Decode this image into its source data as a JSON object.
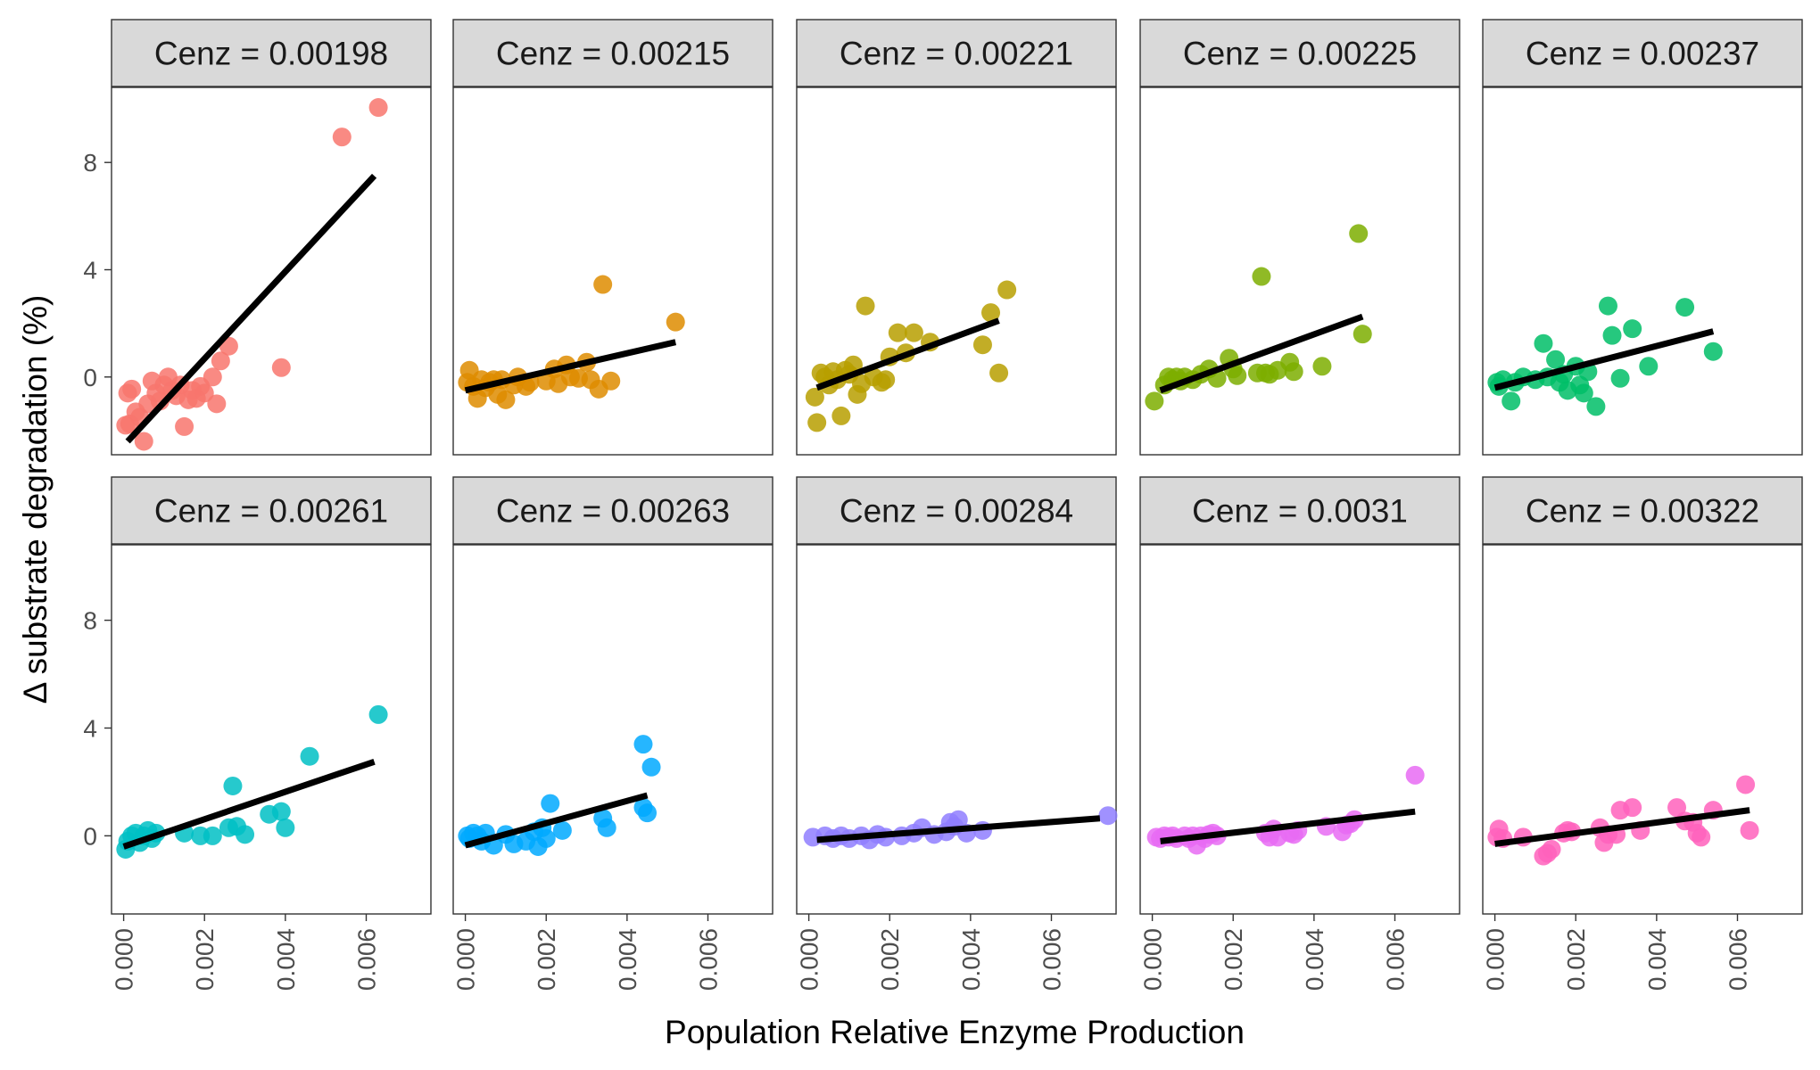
{
  "chart_data": {
    "type": "scatter",
    "xlabel": "Population Relative Enzyme Production",
    "ylabel": "Δ substrate degradation (%)",
    "facet_label_prefix": "Cenz = ",
    "xlim": [
      -0.0003,
      0.0076
    ],
    "ylim": [
      -2.9,
      10.8
    ],
    "x_ticks": [
      0.0,
      0.002,
      0.004,
      0.006
    ],
    "x_tick_labels": [
      "0.000",
      "0.002",
      "0.004",
      "0.006"
    ],
    "y_ticks": [
      0,
      4,
      8
    ],
    "y_tick_labels": [
      "0",
      "4",
      "8"
    ],
    "panels": [
      {
        "label": "0.00198",
        "color": "#F8766D",
        "fit": [
          [
            0.0001,
            -2.4
          ],
          [
            0.0062,
            7.5
          ]
        ],
        "points": [
          [
            5e-05,
            -1.8
          ],
          [
            0.0001,
            -0.6
          ],
          [
            0.00015,
            -1.75
          ],
          [
            0.0002,
            -0.45
          ],
          [
            0.0003,
            -1.3
          ],
          [
            0.0004,
            -1.5
          ],
          [
            0.0005,
            -2.4
          ],
          [
            0.0006,
            -1.0
          ],
          [
            0.0007,
            -0.15
          ],
          [
            0.0008,
            -0.6
          ],
          [
            0.0009,
            -0.9
          ],
          [
            0.001,
            -0.3
          ],
          [
            0.0011,
            0.0
          ],
          [
            0.0012,
            -0.5
          ],
          [
            0.0013,
            -0.7
          ],
          [
            0.0014,
            -0.3
          ],
          [
            0.0015,
            -1.85
          ],
          [
            0.0016,
            -0.85
          ],
          [
            0.0017,
            -0.5
          ],
          [
            0.0018,
            -0.8
          ],
          [
            0.0019,
            -0.35
          ],
          [
            0.002,
            -0.6
          ],
          [
            0.0022,
            0.0
          ],
          [
            0.0023,
            -1.0
          ],
          [
            0.0024,
            0.6
          ],
          [
            0.0026,
            1.15
          ],
          [
            0.0039,
            0.35
          ],
          [
            0.0054,
            8.95
          ],
          [
            0.0063,
            10.05
          ]
        ]
      },
      {
        "label": "0.00215",
        "color": "#DE8C00",
        "fit": [
          [
            0.0,
            -0.5
          ],
          [
            0.0052,
            1.3
          ]
        ],
        "points": [
          [
            5e-05,
            -0.2
          ],
          [
            0.0001,
            0.25
          ],
          [
            0.0002,
            -0.35
          ],
          [
            0.0003,
            -0.8
          ],
          [
            0.0004,
            -0.1
          ],
          [
            0.0005,
            -0.4
          ],
          [
            0.0006,
            -0.2
          ],
          [
            0.0007,
            -0.1
          ],
          [
            0.0008,
            -0.65
          ],
          [
            0.0009,
            -0.1
          ],
          [
            0.001,
            -0.85
          ],
          [
            0.0012,
            -0.3
          ],
          [
            0.0013,
            0.0
          ],
          [
            0.0015,
            -0.35
          ],
          [
            0.0016,
            -0.2
          ],
          [
            0.002,
            -0.15
          ],
          [
            0.0022,
            0.3
          ],
          [
            0.0023,
            -0.25
          ],
          [
            0.0025,
            0.45
          ],
          [
            0.0026,
            0.0
          ],
          [
            0.0028,
            -0.05
          ],
          [
            0.003,
            0.55
          ],
          [
            0.0031,
            -0.1
          ],
          [
            0.0033,
            -0.45
          ],
          [
            0.0034,
            3.45
          ],
          [
            0.0036,
            -0.15
          ],
          [
            0.0052,
            2.05
          ]
        ]
      },
      {
        "label": "0.00221",
        "color": "#B79F00",
        "fit": [
          [
            0.0002,
            -0.4
          ],
          [
            0.0047,
            2.1
          ]
        ],
        "points": [
          [
            0.00015,
            -0.75
          ],
          [
            0.0002,
            -1.7
          ],
          [
            0.0003,
            0.15
          ],
          [
            0.0004,
            0.0
          ],
          [
            0.0005,
            -0.3
          ],
          [
            0.0006,
            0.2
          ],
          [
            0.0007,
            -0.1
          ],
          [
            0.0008,
            -1.45
          ],
          [
            0.0009,
            0.25
          ],
          [
            0.001,
            0.1
          ],
          [
            0.0011,
            0.45
          ],
          [
            0.0012,
            -0.65
          ],
          [
            0.0013,
            -0.25
          ],
          [
            0.0014,
            2.65
          ],
          [
            0.0016,
            0.0
          ],
          [
            0.0018,
            -0.2
          ],
          [
            0.0019,
            -0.1
          ],
          [
            0.002,
            0.75
          ],
          [
            0.0022,
            1.65
          ],
          [
            0.0024,
            0.9
          ],
          [
            0.0026,
            1.65
          ],
          [
            0.003,
            1.3
          ],
          [
            0.0043,
            1.2
          ],
          [
            0.0045,
            2.4
          ],
          [
            0.0047,
            0.15
          ],
          [
            0.0049,
            3.25
          ]
        ]
      },
      {
        "label": "0.00225",
        "color": "#7CAE00",
        "fit": [
          [
            0.0002,
            -0.5
          ],
          [
            0.0052,
            2.25
          ]
        ],
        "points": [
          [
            5e-05,
            -0.9
          ],
          [
            0.0003,
            -0.3
          ],
          [
            0.0004,
            0.0
          ],
          [
            0.0005,
            -0.1
          ],
          [
            0.0006,
            0.0
          ],
          [
            0.0007,
            -0.15
          ],
          [
            0.0008,
            0.0
          ],
          [
            0.001,
            -0.1
          ],
          [
            0.0012,
            0.1
          ],
          [
            0.0014,
            0.3
          ],
          [
            0.0016,
            -0.05
          ],
          [
            0.0019,
            0.7
          ],
          [
            0.002,
            0.3
          ],
          [
            0.0021,
            0.05
          ],
          [
            0.0026,
            0.15
          ],
          [
            0.0027,
            3.75
          ],
          [
            0.0028,
            0.15
          ],
          [
            0.0029,
            0.1
          ],
          [
            0.0031,
            0.25
          ],
          [
            0.0034,
            0.55
          ],
          [
            0.0035,
            0.2
          ],
          [
            0.0042,
            0.4
          ],
          [
            0.0051,
            5.35
          ],
          [
            0.0052,
            1.6
          ]
        ]
      },
      {
        "label": "0.00237",
        "color": "#00BE67",
        "fit": [
          [
            0.0,
            -0.4
          ],
          [
            0.0054,
            1.7
          ]
        ],
        "points": [
          [
            5e-05,
            -0.2
          ],
          [
            0.0001,
            -0.35
          ],
          [
            0.0002,
            -0.1
          ],
          [
            0.0004,
            -0.9
          ],
          [
            0.0005,
            -0.2
          ],
          [
            0.0007,
            0.0
          ],
          [
            0.001,
            -0.1
          ],
          [
            0.0012,
            1.25
          ],
          [
            0.0013,
            0.0
          ],
          [
            0.0015,
            0.65
          ],
          [
            0.0016,
            -0.2
          ],
          [
            0.0017,
            0.1
          ],
          [
            0.0018,
            -0.5
          ],
          [
            0.002,
            0.4
          ],
          [
            0.0021,
            -0.3
          ],
          [
            0.0022,
            -0.6
          ],
          [
            0.0023,
            0.2
          ],
          [
            0.0025,
            -1.1
          ],
          [
            0.0028,
            2.65
          ],
          [
            0.0029,
            1.55
          ],
          [
            0.0031,
            -0.05
          ],
          [
            0.0034,
            1.8
          ],
          [
            0.0038,
            0.4
          ],
          [
            0.0047,
            2.6
          ],
          [
            0.0054,
            0.95
          ]
        ]
      },
      {
        "label": "0.00261",
        "color": "#00BFC4",
        "fit": [
          [
            0.0,
            -0.4
          ],
          [
            0.0062,
            2.75
          ]
        ],
        "points": [
          [
            5e-05,
            -0.5
          ],
          [
            0.0001,
            -0.2
          ],
          [
            0.0002,
            0.0
          ],
          [
            0.0003,
            0.1
          ],
          [
            0.0004,
            -0.25
          ],
          [
            0.0005,
            0.0
          ],
          [
            0.0006,
            0.2
          ],
          [
            0.0007,
            -0.1
          ],
          [
            0.0008,
            0.1
          ],
          [
            0.0015,
            0.1
          ],
          [
            0.0019,
            0.0
          ],
          [
            0.0022,
            0.0
          ],
          [
            0.0026,
            0.3
          ],
          [
            0.0027,
            1.85
          ],
          [
            0.0028,
            0.35
          ],
          [
            0.003,
            0.05
          ],
          [
            0.0036,
            0.8
          ],
          [
            0.0039,
            0.9
          ],
          [
            0.004,
            0.3
          ],
          [
            0.0046,
            2.95
          ],
          [
            0.0063,
            4.5
          ]
        ]
      },
      {
        "label": "0.00263",
        "color": "#00A9FF",
        "fit": [
          [
            0.0,
            -0.35
          ],
          [
            0.0045,
            1.5
          ]
        ],
        "points": [
          [
            5e-05,
            0.0
          ],
          [
            0.0001,
            -0.1
          ],
          [
            0.0002,
            0.1
          ],
          [
            0.0003,
            0.0
          ],
          [
            0.0004,
            -0.2
          ],
          [
            0.0005,
            0.1
          ],
          [
            0.0007,
            -0.35
          ],
          [
            0.001,
            0.05
          ],
          [
            0.0012,
            -0.3
          ],
          [
            0.0015,
            -0.2
          ],
          [
            0.0017,
            0.15
          ],
          [
            0.0018,
            -0.4
          ],
          [
            0.0019,
            0.3
          ],
          [
            0.002,
            -0.1
          ],
          [
            0.0021,
            1.2
          ],
          [
            0.0024,
            0.2
          ],
          [
            0.0034,
            0.65
          ],
          [
            0.0035,
            0.3
          ],
          [
            0.0044,
            1.05
          ],
          [
            0.0045,
            0.85
          ],
          [
            0.0044,
            3.4
          ],
          [
            0.0046,
            2.55
          ]
        ]
      },
      {
        "label": "0.00284",
        "color": "#8F7EFF",
        "fit": [
          [
            0.0002,
            -0.15
          ],
          [
            0.0072,
            0.65
          ]
        ],
        "points": [
          [
            0.0001,
            -0.05
          ],
          [
            0.0004,
            0.0
          ],
          [
            0.0006,
            -0.1
          ],
          [
            0.0008,
            0.0
          ],
          [
            0.001,
            -0.1
          ],
          [
            0.0013,
            0.0
          ],
          [
            0.0015,
            -0.15
          ],
          [
            0.0017,
            0.05
          ],
          [
            0.0019,
            -0.05
          ],
          [
            0.0023,
            0.0
          ],
          [
            0.0026,
            0.1
          ],
          [
            0.0028,
            0.3
          ],
          [
            0.0031,
            0.05
          ],
          [
            0.0034,
            0.15
          ],
          [
            0.0035,
            0.5
          ],
          [
            0.0036,
            0.35
          ],
          [
            0.0037,
            0.6
          ],
          [
            0.0039,
            0.1
          ],
          [
            0.0043,
            0.2
          ],
          [
            0.0074,
            0.75
          ]
        ]
      },
      {
        "label": "0.0031",
        "color": "#E76BF3",
        "fit": [
          [
            0.0002,
            -0.2
          ],
          [
            0.0065,
            0.9
          ]
        ],
        "points": [
          [
            0.0001,
            -0.05
          ],
          [
            0.0002,
            -0.1
          ],
          [
            0.0003,
            0.0
          ],
          [
            0.0004,
            -0.05
          ],
          [
            0.0005,
            0.0
          ],
          [
            0.0006,
            -0.1
          ],
          [
            0.0008,
            0.0
          ],
          [
            0.0009,
            -0.1
          ],
          [
            0.001,
            0.0
          ],
          [
            0.0011,
            -0.35
          ],
          [
            0.0012,
            0.0
          ],
          [
            0.0013,
            -0.1
          ],
          [
            0.0014,
            0.05
          ],
          [
            0.0015,
            0.1
          ],
          [
            0.0016,
            0.0
          ],
          [
            0.0028,
            0.1
          ],
          [
            0.0029,
            -0.05
          ],
          [
            0.003,
            0.25
          ],
          [
            0.0031,
            -0.05
          ],
          [
            0.0034,
            0.1
          ],
          [
            0.0035,
            0.05
          ],
          [
            0.0036,
            0.2
          ],
          [
            0.0043,
            0.35
          ],
          [
            0.0047,
            0.15
          ],
          [
            0.0048,
            0.4
          ],
          [
            0.0049,
            0.45
          ],
          [
            0.005,
            0.6
          ],
          [
            0.0065,
            2.25
          ]
        ]
      },
      {
        "label": "0.00322",
        "color": "#FF62BC",
        "fit": [
          [
            0.0,
            -0.3
          ],
          [
            0.0063,
            0.95
          ]
        ],
        "points": [
          [
            5e-05,
            -0.05
          ],
          [
            0.0001,
            0.25
          ],
          [
            0.0002,
            -0.1
          ],
          [
            0.0007,
            -0.05
          ],
          [
            0.0012,
            -0.75
          ],
          [
            0.0013,
            -0.65
          ],
          [
            0.0014,
            -0.5
          ],
          [
            0.0017,
            0.1
          ],
          [
            0.0018,
            0.2
          ],
          [
            0.0019,
            0.15
          ],
          [
            0.0026,
            0.3
          ],
          [
            0.0027,
            -0.25
          ],
          [
            0.0028,
            0.05
          ],
          [
            0.003,
            0.05
          ],
          [
            0.0031,
            0.95
          ],
          [
            0.0034,
            1.05
          ],
          [
            0.0036,
            0.2
          ],
          [
            0.0045,
            1.05
          ],
          [
            0.0047,
            0.55
          ],
          [
            0.0049,
            0.5
          ],
          [
            0.005,
            0.1
          ],
          [
            0.0051,
            -0.05
          ],
          [
            0.0054,
            0.95
          ],
          [
            0.0062,
            1.9
          ],
          [
            0.0063,
            0.2
          ]
        ]
      }
    ]
  }
}
